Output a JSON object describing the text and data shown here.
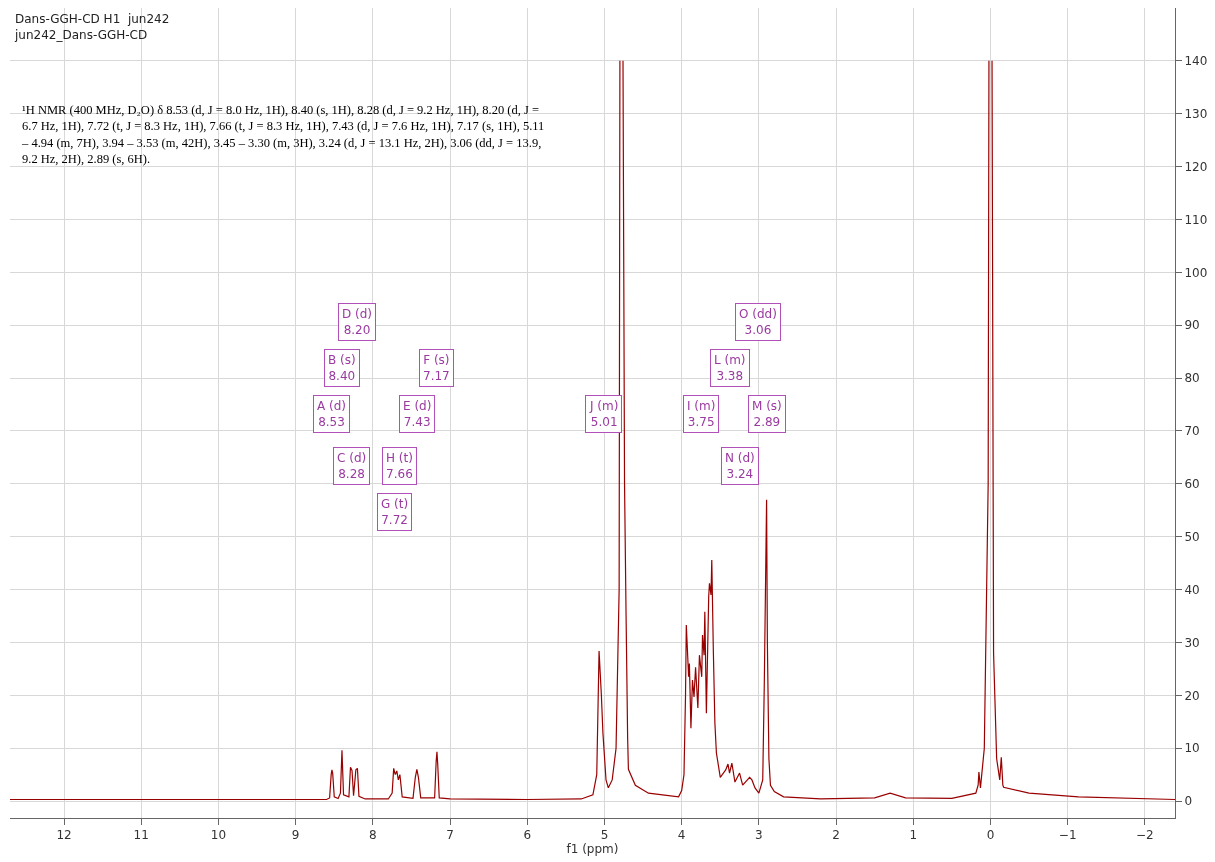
{
  "chart_data": {
    "type": "line",
    "title": "Dans-GGH-CD H1  jun242",
    "subtitle": "jun242_Dans-GGH-CD",
    "xlabel": "f1 (ppm)",
    "x": [
      12.7,
      9.0,
      8.6,
      8.56,
      8.54,
      8.53,
      8.52,
      8.5,
      8.45,
      8.42,
      8.4,
      8.38,
      8.31,
      8.29,
      8.27,
      8.25,
      8.22,
      8.2,
      8.18,
      8.1,
      7.8,
      7.75,
      7.73,
      7.71,
      7.69,
      7.67,
      7.65,
      7.62,
      7.48,
      7.45,
      7.43,
      7.41,
      7.38,
      7.2,
      7.18,
      7.17,
      7.16,
      7.14,
      7.0,
      6.0,
      5.3,
      5.15,
      5.1,
      5.07,
      5.04,
      5.02,
      4.98,
      4.95,
      4.9,
      4.85,
      4.81,
      4.8,
      4.79,
      4.77,
      4.76,
      4.74,
      4.72,
      4.7,
      4.69,
      4.6,
      4.43,
      4.04,
      4.0,
      3.97,
      3.95,
      3.94,
      3.91,
      3.9,
      3.88,
      3.86,
      3.84,
      3.82,
      3.79,
      3.77,
      3.74,
      3.73,
      3.71,
      3.7,
      3.68,
      3.65,
      3.64,
      3.62,
      3.61,
      3.59,
      3.57,
      3.55,
      3.5,
      3.46,
      3.43,
      3.4,
      3.38,
      3.35,
      3.31,
      3.25,
      3.21,
      3.12,
      3.09,
      3.05,
      3.0,
      2.95,
      2.93,
      2.9,
      2.89,
      2.87,
      2.85,
      2.8,
      2.68,
      2.2,
      1.5,
      1.3,
      1.1,
      0.5,
      0.19,
      0.16,
      0.15,
      0.13,
      0.08,
      0.03,
      0.02,
      0.01,
      -0.01,
      -0.02,
      -0.04,
      -0.08,
      -0.12,
      -0.14,
      -0.16,
      -0.17,
      -0.5,
      -1.14,
      -2.39
    ],
    "series": [
      {
        "color": "#990000",
        "values": [
          0.3,
          0.3,
          0.3,
          0.6,
          5.0,
          5.9,
          5.2,
          0.8,
          0.5,
          1.5,
          9.6,
          1.2,
          0.8,
          6.4,
          5.8,
          1.0,
          5.9,
          6.2,
          0.9,
          0.4,
          0.4,
          1.5,
          6.2,
          5.0,
          5.7,
          4.0,
          5.0,
          0.8,
          0.5,
          4.5,
          6.0,
          4.5,
          0.6,
          0.6,
          7.5,
          9.3,
          7.0,
          0.6,
          0.4,
          0.3,
          0.4,
          1.2,
          5,
          28.4,
          20,
          12.9,
          4,
          2.5,
          4,
          10,
          40,
          140,
          null,
          null,
          140,
          60,
          35,
          12,
          6,
          3,
          1.5,
          0.8,
          2,
          5,
          20,
          33.3,
          23.5,
          26,
          13.8,
          22.9,
          19.7,
          25.3,
          17.6,
          27.6,
          23.5,
          31.4,
          27.6,
          35.8,
          16.6,
          38.6,
          41.2,
          39,
          45.6,
          28.6,
          14.8,
          9.1,
          4.5,
          5.3,
          5.9,
          7.0,
          5.3,
          7.2,
          3.6,
          5.3,
          3.0,
          4.5,
          4.0,
          2.5,
          1.5,
          4,
          22,
          57,
          30,
          8,
          3,
          1.8,
          0.8,
          0.4,
          0.6,
          1.5,
          0.6,
          0.5,
          1.5,
          3,
          5.5,
          2.5,
          10,
          60,
          140,
          null,
          null,
          140,
          28,
          8,
          4,
          8.3,
          3,
          2.6,
          1.5,
          0.8,
          0.3
        ]
      }
    ],
    "xlim": [
      12.7,
      -2.39
    ],
    "xticks": [
      12,
      11,
      10,
      9,
      8,
      7,
      6,
      5,
      4,
      3,
      2,
      1,
      0,
      {
        "value": -1,
        "label": "−1"
      },
      {
        "value": -2,
        "label": "−2"
      }
    ],
    "ylim": [
      -3.2,
      150
    ],
    "yticks": [
      0,
      10,
      20,
      30,
      40,
      50,
      60,
      70,
      80,
      90,
      100,
      110,
      120,
      130,
      140
    ],
    "grid": true,
    "marker": "none",
    "line_style": "solid",
    "annotations": [
      "¹H NMR (400 MHz, D₂O) δ 8.53 (d, J = 8.0 Hz, 1H), 8.40 (s, 1H), 8.28 (d, J = 9.2 Hz, 1H), 8.20 (d, J =\n6.7 Hz, 1H), 7.72 (t, J = 8.3 Hz, 1H), 7.66 (t, J = 8.3 Hz, 1H), 7.43 (d, J = 7.6 Hz, 1H), 7.17 (s, 1H), 5.11\n– 4.94 (m, 7H), 3.94 – 3.53 (m, 42H), 3.45 – 3.30 (m, 3H), 3.24 (d, J = 13.1 Hz, 2H), 3.06 (dd, J = 13.9,\n9.2 Hz, 2H), 2.89 (s, 6H).",
      {
        "text": "D (d)\n8.20",
        "x": 8.2,
        "y": 90.6
      },
      {
        "text": "B (s)\n8.40",
        "x": 8.4,
        "y": 81.9
      },
      {
        "text": "F (s)\n7.17",
        "x": 7.17,
        "y": 81.9
      },
      {
        "text": "A (d)\n8.53",
        "x": 8.53,
        "y": 73.2
      },
      {
        "text": "E (d)\n7.43",
        "x": 7.43,
        "y": 73.2
      },
      {
        "text": "C (d)\n8.28",
        "x": 8.28,
        "y": 63.4
      },
      {
        "text": "H (t)\n7.66",
        "x": 7.66,
        "y": 63.4
      },
      {
        "text": "G (t)\n7.72",
        "x": 7.72,
        "y": 54.7
      },
      {
        "text": "J (m)\n5.01",
        "x": 5.01,
        "y": 73.2
      },
      "O (dd)\n3.06",
      {
        "text": "L (m)\n3.38",
        "x": 3.38,
        "y": 81.9
      },
      {
        "text": "I (m)\n3.75",
        "x": 3.75,
        "y": 73.2
      },
      {
        "text": "M (s)\n2.89",
        "x": 2.89,
        "y": 73.2
      },
      {
        "text": "N (d)\n3.24",
        "x": 3.24,
        "y": 63.4
      }
    ]
  }
}
